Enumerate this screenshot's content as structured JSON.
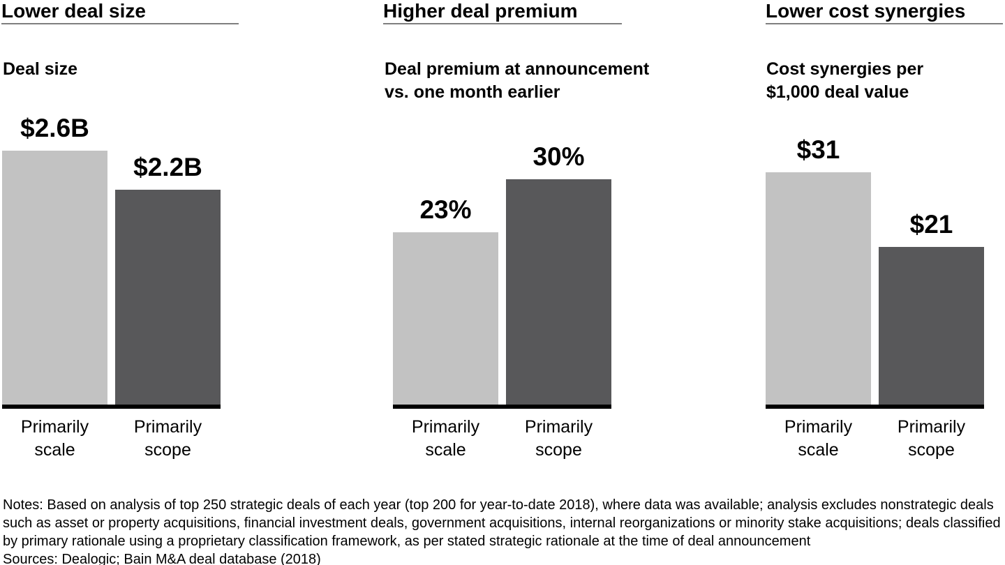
{
  "colors": {
    "bar_light": "#c2c2c2",
    "bar_dark": "#58585a",
    "baseline": "#000000",
    "header_underline": "#7f7f7f",
    "text": "#000000",
    "background": "#ffffff"
  },
  "chart_data": [
    {
      "type": "bar",
      "title": "Lower deal size",
      "subtitle": "Deal size",
      "categories": [
        "Primarily\nscale",
        "Primarily\nscope"
      ],
      "values": [
        2.6,
        2.2
      ],
      "value_labels": [
        "$2.6B",
        "$2.2B"
      ],
      "series_colors": [
        "#c2c2c2",
        "#58585a"
      ],
      "ylim": [
        0,
        2.6
      ],
      "grid": false,
      "legend": "none"
    },
    {
      "type": "bar",
      "title": "Higher deal premium",
      "subtitle": "Deal premium at announcement\nvs. one month earlier",
      "categories": [
        "Primarily\nscale",
        "Primarily\nscope"
      ],
      "values": [
        23,
        30
      ],
      "value_labels": [
        "23%",
        "30%"
      ],
      "series_colors": [
        "#c2c2c2",
        "#58585a"
      ],
      "ylim": [
        0,
        30
      ],
      "grid": false,
      "legend": "none"
    },
    {
      "type": "bar",
      "title": "Lower cost synergies",
      "subtitle": "Cost synergies per\n$1,000 deal value",
      "categories": [
        "Primarily\nscale",
        "Primarily\nscope"
      ],
      "values": [
        31,
        21
      ],
      "value_labels": [
        "$31",
        "$21"
      ],
      "series_colors": [
        "#c2c2c2",
        "#58585a"
      ],
      "ylim": [
        0,
        31
      ],
      "grid": false,
      "legend": "none"
    }
  ],
  "notes": {
    "lines": [
      "Notes: Based on analysis of top 250 strategic deals of each year (top 200 for year-to-date 2018), where data was available; analysis excludes nonstrategic deals",
      "such as asset or property acquisitions, financial investment deals, government acquisitions, internal reorganizations or minority stake acquisitions; deals classified",
      "by primary rationale using a proprietary classification framework, as per stated strategic rationale at the time of deal announcement"
    ],
    "sources": "Sources: Dealogic; Bain M&A deal database (2018)"
  }
}
